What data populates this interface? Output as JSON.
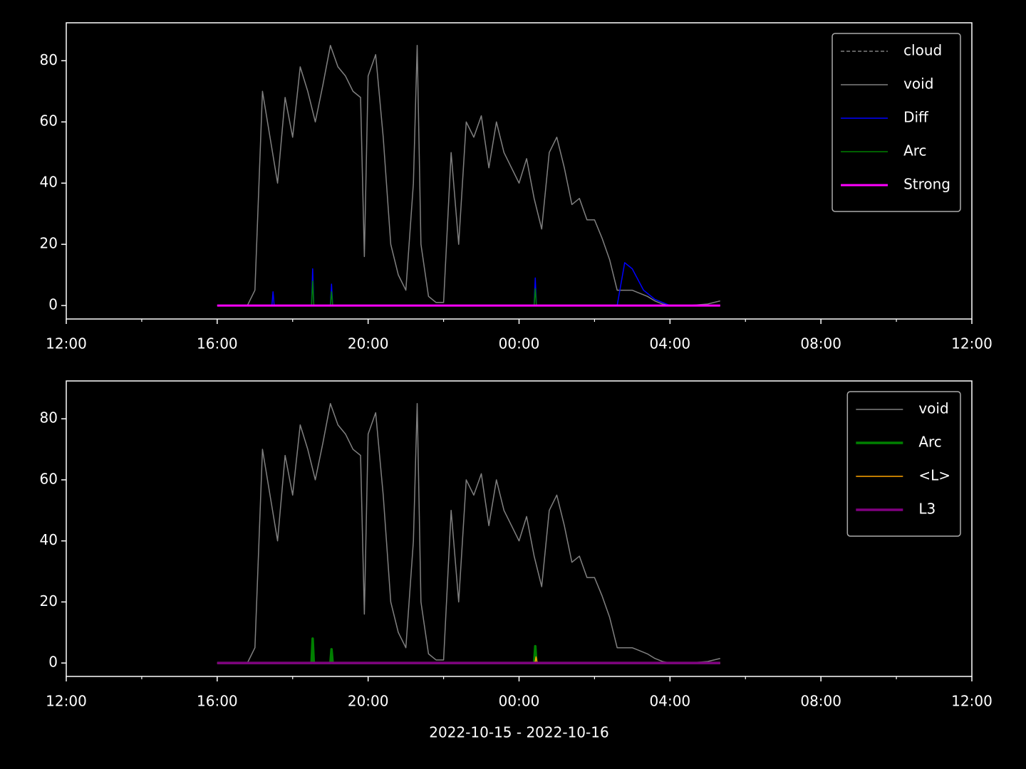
{
  "chart_data": [
    {
      "type": "line",
      "xlim": [
        0,
        24
      ],
      "xticks": [
        {
          "value": 0,
          "label": "12:00"
        },
        {
          "value": 4,
          "label": "16:00"
        },
        {
          "value": 8,
          "label": "20:00"
        },
        {
          "value": 12,
          "label": "00:00"
        },
        {
          "value": 16,
          "label": "04:00"
        },
        {
          "value": 20,
          "label": "08:00"
        },
        {
          "value": 24,
          "label": "12:00"
        }
      ],
      "xminorticks": [
        2,
        6,
        10,
        14,
        18,
        22
      ],
      "ylim": [
        -4.4,
        92.4
      ],
      "yticks": [
        0,
        20,
        40,
        60,
        80
      ],
      "legend": "upper right",
      "series": [
        {
          "name": "cloud",
          "color": "#808080",
          "linestyle": "dashed",
          "linewidth": 1.5,
          "x": [
            4,
            17.33
          ],
          "values": [
            0,
            0
          ]
        },
        {
          "name": "void",
          "color": "#808080",
          "linewidth": 1.5,
          "x": [
            4,
            4.5,
            4.8,
            5.0,
            5.2,
            5.4,
            5.6,
            5.8,
            6.0,
            6.2,
            6.4,
            6.6,
            6.8,
            7.0,
            7.2,
            7.4,
            7.6,
            7.8,
            7.9,
            8.0,
            8.2,
            8.4,
            8.6,
            8.8,
            9.0,
            9.2,
            9.3,
            9.4,
            9.6,
            9.8,
            10.0,
            10.2,
            10.4,
            10.6,
            10.8,
            11.0,
            11.2,
            11.4,
            11.6,
            11.8,
            12.0,
            12.2,
            12.4,
            12.6,
            12.8,
            13.0,
            13.2,
            13.4,
            13.6,
            13.8,
            14.0,
            14.2,
            14.4,
            14.6,
            14.8,
            15.0,
            15.2,
            15.4,
            15.6,
            15.8,
            16.0,
            16.5,
            17.0,
            17.33
          ],
          "values": [
            0,
            0,
            0,
            5,
            70,
            55,
            40,
            68,
            55,
            78,
            70,
            60,
            72,
            85,
            78,
            75,
            70,
            68,
            16,
            75,
            82,
            55,
            20,
            10,
            5,
            40,
            85,
            20,
            3,
            1,
            1,
            50,
            20,
            60,
            55,
            62,
            45,
            60,
            50,
            45,
            40,
            48,
            35,
            25,
            50,
            55,
            45,
            33,
            35,
            28,
            28,
            22,
            15,
            5,
            5,
            5,
            4,
            3,
            1.5,
            0.5,
            0,
            0,
            0.5,
            1.5
          ]
        },
        {
          "name": "Diff",
          "color": "#0000ff",
          "linewidth": 1.5,
          "x": [
            4,
            5.45,
            5.48,
            5.51,
            6.5,
            6.53,
            6.56,
            7.0,
            7.03,
            7.06,
            12.4,
            12.43,
            12.46,
            14.6,
            14.8,
            15.0,
            15.3,
            15.6,
            16,
            17.33
          ],
          "values": [
            0,
            0,
            4.5,
            0,
            0,
            12,
            0,
            0,
            7,
            0,
            0,
            9,
            0,
            0,
            14,
            12,
            5,
            2,
            0,
            0
          ]
        },
        {
          "name": "Arc",
          "color": "#008000",
          "linewidth": 1.5,
          "x": [
            4,
            6.5,
            6.53,
            6.56,
            7.0,
            7.03,
            7.06,
            12.4,
            12.43,
            12.46,
            17.33
          ],
          "values": [
            0,
            0,
            8,
            0,
            0,
            4.5,
            0,
            0,
            5.5,
            0,
            0
          ]
        },
        {
          "name": "Strong",
          "color": "#ff00ff",
          "linewidth": 3,
          "x": [
            4,
            17.33
          ],
          "values": [
            0,
            0
          ]
        }
      ]
    },
    {
      "type": "line",
      "xlim": [
        0,
        24
      ],
      "xlabel": "2022-10-15 - 2022-10-16",
      "xticks": [
        {
          "value": 0,
          "label": "12:00"
        },
        {
          "value": 4,
          "label": "16:00"
        },
        {
          "value": 8,
          "label": "20:00"
        },
        {
          "value": 12,
          "label": "00:00"
        },
        {
          "value": 16,
          "label": "04:00"
        },
        {
          "value": 20,
          "label": "08:00"
        },
        {
          "value": 24,
          "label": "12:00"
        }
      ],
      "xminorticks": [
        2,
        6,
        10,
        14,
        18,
        22
      ],
      "ylim": [
        -4.4,
        92.4
      ],
      "yticks": [
        0,
        20,
        40,
        60,
        80
      ],
      "legend": "upper right",
      "series": [
        {
          "name": "void",
          "color": "#808080",
          "linewidth": 1.5,
          "x": [
            4,
            4.5,
            4.8,
            5.0,
            5.2,
            5.4,
            5.6,
            5.8,
            6.0,
            6.2,
            6.4,
            6.6,
            6.8,
            7.0,
            7.2,
            7.4,
            7.6,
            7.8,
            7.9,
            8.0,
            8.2,
            8.4,
            8.6,
            8.8,
            9.0,
            9.2,
            9.3,
            9.4,
            9.6,
            9.8,
            10.0,
            10.2,
            10.4,
            10.6,
            10.8,
            11.0,
            11.2,
            11.4,
            11.6,
            11.8,
            12.0,
            12.2,
            12.4,
            12.6,
            12.8,
            13.0,
            13.2,
            13.4,
            13.6,
            13.8,
            14.0,
            14.2,
            14.4,
            14.6,
            14.8,
            15.0,
            15.2,
            15.4,
            15.6,
            15.8,
            16.0,
            16.5,
            17.0,
            17.33
          ],
          "values": [
            0,
            0,
            0,
            5,
            70,
            55,
            40,
            68,
            55,
            78,
            70,
            60,
            72,
            85,
            78,
            75,
            70,
            68,
            16,
            75,
            82,
            55,
            20,
            10,
            5,
            40,
            85,
            20,
            3,
            1,
            1,
            50,
            20,
            60,
            55,
            62,
            45,
            60,
            50,
            45,
            40,
            48,
            35,
            25,
            50,
            55,
            45,
            33,
            35,
            28,
            28,
            22,
            15,
            5,
            5,
            5,
            4,
            3,
            1.5,
            0.5,
            0,
            0,
            0.5,
            1.5
          ]
        },
        {
          "name": "Arc",
          "color": "#008000",
          "linewidth": 3.5,
          "x": [
            4,
            6.5,
            6.53,
            6.56,
            7.0,
            7.03,
            7.06,
            12.4,
            12.43,
            12.46,
            17.33
          ],
          "values": [
            0,
            0,
            8,
            0,
            0,
            4.5,
            0,
            0,
            5.5,
            0,
            0
          ]
        },
        {
          "name": "<L>",
          "color": "#ffa500",
          "linewidth": 1.5,
          "x": [
            4,
            12.42,
            12.45,
            12.48,
            17.33
          ],
          "values": [
            0,
            0,
            2,
            0,
            0
          ]
        },
        {
          "name": "L3",
          "color": "#800080",
          "linewidth": 3.5,
          "x": [
            4,
            17.33
          ],
          "values": [
            0,
            0
          ]
        }
      ]
    }
  ]
}
